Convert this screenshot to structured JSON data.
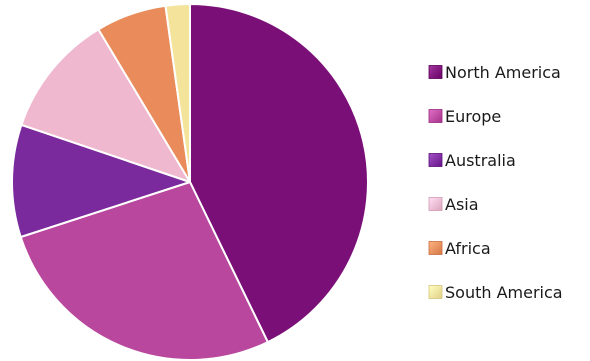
{
  "chart_data": {
    "type": "pie",
    "title": "",
    "start_angle_deg": 0,
    "direction": "clockwise",
    "slices": [
      {
        "label": "North America",
        "value": 42.8,
        "color": "#7b0f78"
      },
      {
        "label": "Europe",
        "value": 27.2,
        "color": "#b8479d"
      },
      {
        "label": "Australia",
        "value": 10.2,
        "color": "#7a2a9c"
      },
      {
        "label": "Asia",
        "value": 11.2,
        "color": "#efb8cf"
      },
      {
        "label": "Africa",
        "value": 6.4,
        "color": "#e98b5a"
      },
      {
        "label": "South America",
        "value": 2.2,
        "color": "#f4e39a"
      }
    ],
    "legend": {
      "position": "right"
    }
  }
}
